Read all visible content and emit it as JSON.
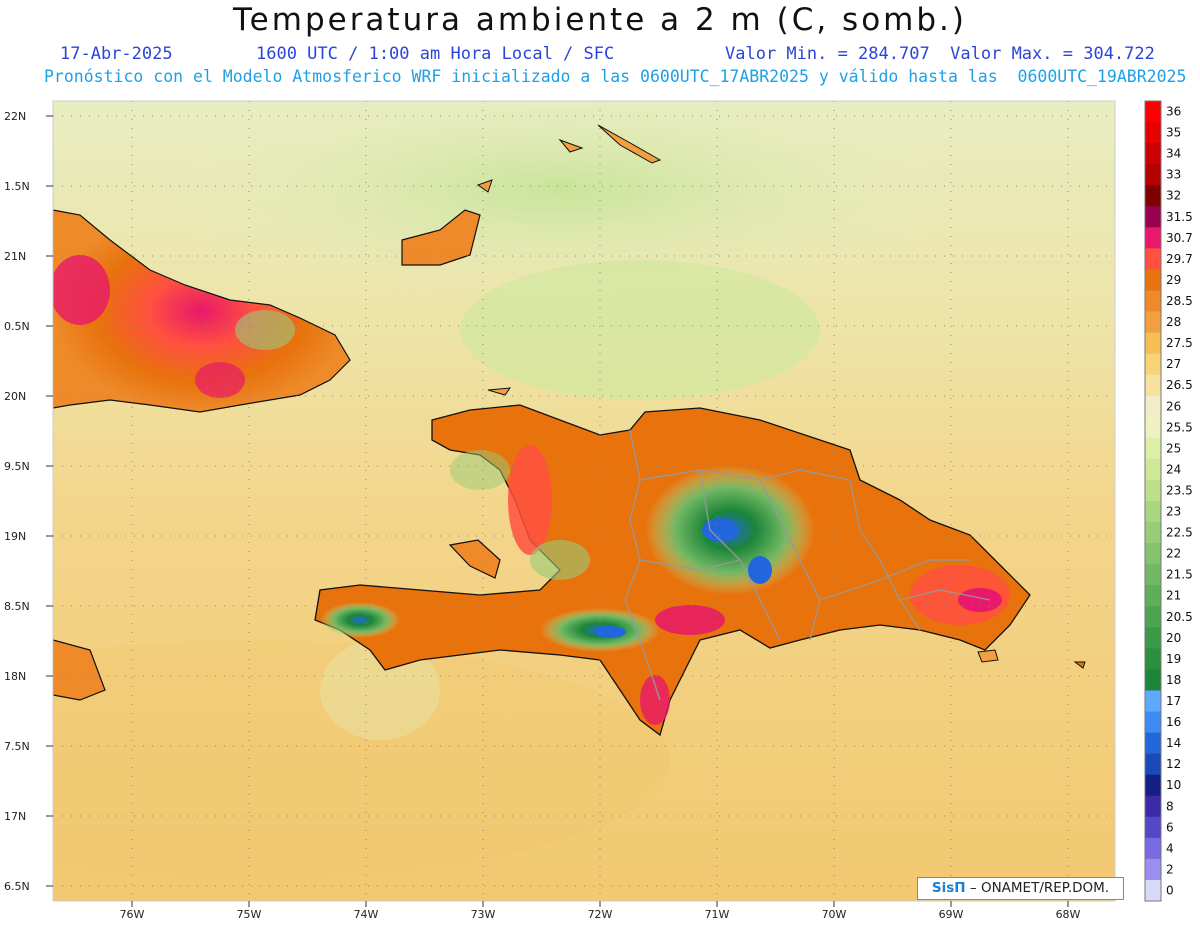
{
  "title": "Temperatura ambiente a 2 m (C, somb.)",
  "header": {
    "date": "17-Abr-2025",
    "time": "1600 UTC / 1:00 am Hora Local / SFC",
    "minmax": "Valor Min. = 284.707  Valor Max. = 304.722",
    "forecast": "Pronóstico con el Modelo Atmosferico WRF inicializado a las 0600UTC_17ABR2025 y válido hasta las  0600UTC_19ABR2025"
  },
  "axes": {
    "lat_labels": [
      "22N",
      "1.5N",
      "21N",
      "0.5N",
      "20N",
      "9.5N",
      "19N",
      "8.5N",
      "18N",
      "7.5N",
      "17N",
      "6.5N"
    ],
    "lon_labels": [
      "76W",
      "75W",
      "74W",
      "73W",
      "72W",
      "71W",
      "70W",
      "69W",
      "68W"
    ]
  },
  "colorbar": {
    "labels": [
      "36",
      "35",
      "34",
      "33",
      "32",
      "31.5",
      "30.7",
      "29.7",
      "29",
      "28.5",
      "28",
      "27.5",
      "27",
      "26.5",
      "26",
      "25.5",
      "25",
      "24",
      "23.5",
      "23",
      "22.5",
      "22",
      "21.5",
      "21",
      "20.5",
      "20",
      "19",
      "18",
      "17",
      "16",
      "14",
      "12",
      "10",
      "8",
      "6",
      "4",
      "2",
      "0"
    ],
    "colors": [
      "#ff0000",
      "#e60000",
      "#cc0000",
      "#b30000",
      "#800000",
      "#99004d",
      "#e8186a",
      "#ff5040",
      "#e8720c",
      "#ee8a2a",
      "#f0a040",
      "#f5bf55",
      "#f8d478",
      "#f6e2a0",
      "#f3ecc8",
      "#eef2c2",
      "#dcefa8",
      "#cde897",
      "#bde08a",
      "#aad680",
      "#97cc78",
      "#84c26e",
      "#72b864",
      "#5fae5a",
      "#4ca350",
      "#3a9a48",
      "#2a9040",
      "#1b8638",
      "#5fa8ff",
      "#3d8cf2",
      "#2266dd",
      "#1a4ab8",
      "#141f86",
      "#3a2aa8",
      "#5548c8",
      "#7a6ae0",
      "#9a8ef0",
      "#d8d8f8"
    ]
  },
  "credit": {
    "brand": "SisΠ",
    "text": " – ONAMET/REP.DOM."
  }
}
